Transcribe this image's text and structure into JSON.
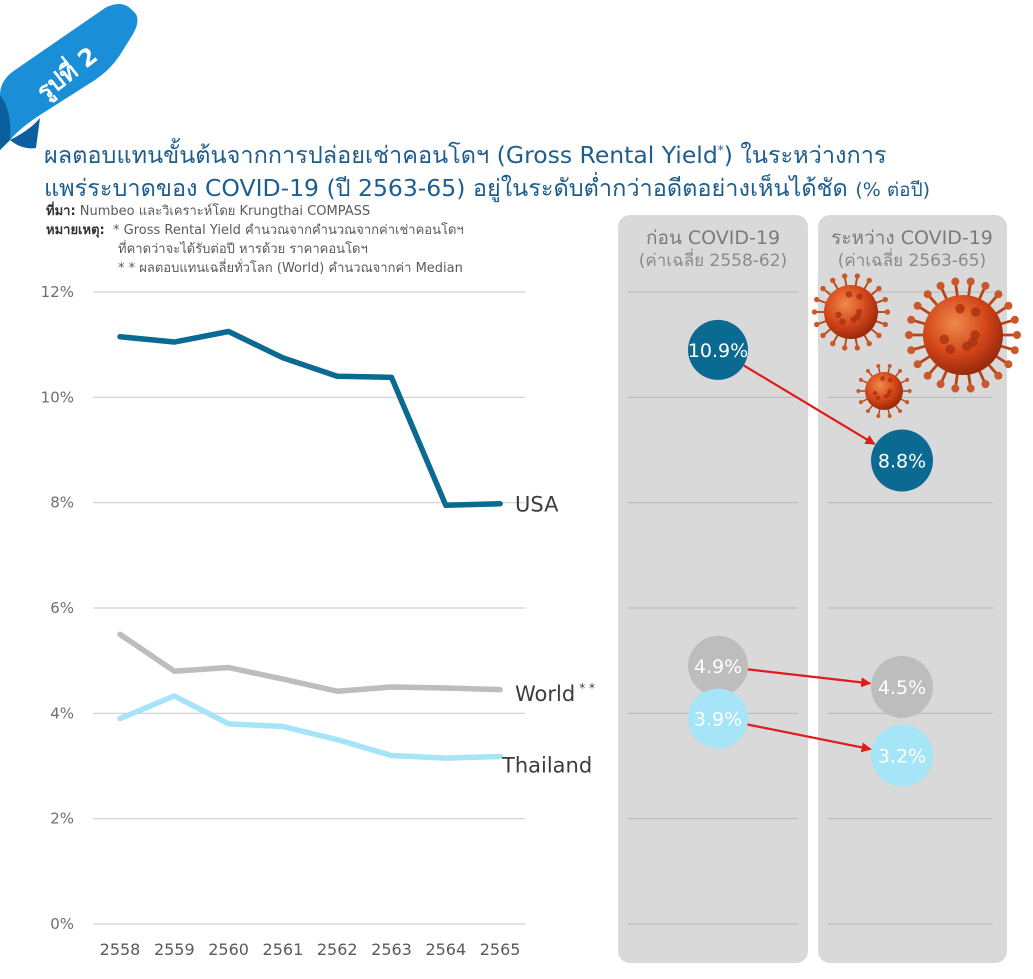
{
  "figure_label": "รูปที่ 2",
  "title_line1": "ผลตอบแทนขั้นต้นจากการปล่อยเช่าคอนโดฯ (Gross Rental Yield",
  "title_sup": "*",
  "title_line1_end": ") ในระหว่างการ",
  "title_line2": "แพร่ระบาดของ COVID-19 (ปี 2563-65) อยู่ในระดับต่ำกว่าอดีตอย่างเห็นได้ชัด",
  "title_unit": "(% ต่อปี)",
  "source_label": "ที่มา:",
  "source_text": "Numbeo และวิเคราะห์โดย Krungthai COMPASS",
  "note_label": "หมายเหตุ:",
  "note1": "* Gross Rental Yield คำนวณจากคำนวณจากค่าเช่าคอนโดฯ",
  "note1b": "ที่คาดว่าจะได้รับต่อปี หารด้วย ราคาคอนโดฯ",
  "note2": "* * ผลตอบแทนเฉลี่ยทั่วโลก (World) คำนวณจากค่า Median",
  "colors": {
    "usa": "#0b6a91",
    "world": "#bdbdbd",
    "thailand": "#a6e4f7",
    "panel": "#d9d9d9",
    "arrow": "#e01b1b",
    "ribbon": "#1a8fd8"
  },
  "chart_data": {
    "type": "line",
    "categories": [
      "2558",
      "2559",
      "2560",
      "2561",
      "2562",
      "2563",
      "2564",
      "2565"
    ],
    "ylim": [
      0,
      12
    ],
    "yticks": [
      "0%",
      "2%",
      "4%",
      "6%",
      "8%",
      "10%",
      "12%"
    ],
    "series": [
      {
        "name": "USA",
        "values": [
          11.15,
          11.05,
          11.25,
          10.75,
          10.4,
          10.38,
          7.95,
          7.98
        ]
      },
      {
        "name": "World",
        "name_sup": "* *",
        "values": [
          5.5,
          4.8,
          4.87,
          4.65,
          4.42,
          4.5,
          4.48,
          4.45
        ]
      },
      {
        "name": "Thailand",
        "values": [
          3.9,
          4.33,
          3.8,
          3.75,
          3.5,
          3.2,
          3.15,
          3.18
        ]
      }
    ]
  },
  "comparison": {
    "before": {
      "title": "ก่อน COVID-19",
      "subtitle": "(ค่าเฉลี่ย 2558-62)"
    },
    "during": {
      "title": "ระหว่าง COVID-19",
      "subtitle": "(ค่าเฉลี่ย 2563-65)"
    },
    "pairs": [
      {
        "series": "USA",
        "before": 10.9,
        "before_label": "10.9%",
        "during": 8.8,
        "during_label": "8.8%"
      },
      {
        "series": "World",
        "before": 4.9,
        "before_label": "4.9%",
        "during": 4.5,
        "during_label": "4.5%"
      },
      {
        "series": "Thailand",
        "before": 3.9,
        "before_label": "3.9%",
        "during": 3.2,
        "during_label": "3.2%"
      }
    ]
  }
}
